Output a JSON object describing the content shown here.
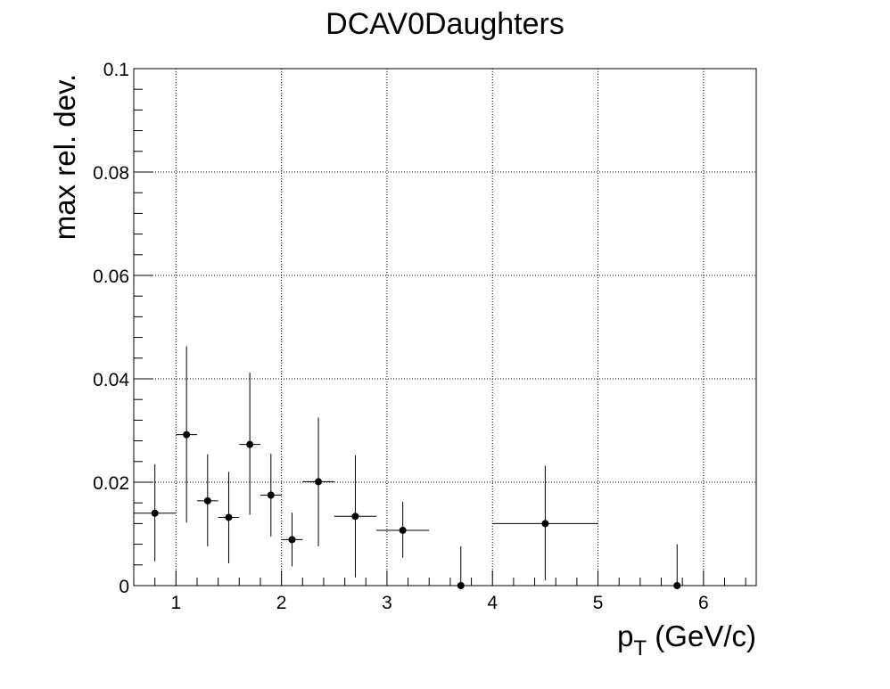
{
  "chart_data": {
    "type": "scatter",
    "title": "DCAV0Daughters",
    "xlabel_main": "p",
    "xlabel_sub": "T",
    "xlabel_unit": " (GeV/c)",
    "ylabel": "max rel. dev.",
    "xlim": [
      0.6,
      6.5
    ],
    "ylim": [
      0,
      0.1
    ],
    "x_ticks": [
      1,
      2,
      3,
      4,
      5,
      6
    ],
    "x_tick_labels": [
      "1",
      "2",
      "3",
      "4",
      "5",
      "6"
    ],
    "y_ticks": [
      0,
      0.02,
      0.04,
      0.06,
      0.08,
      0.1
    ],
    "y_tick_labels": [
      "0",
      "0.02",
      "0.04",
      "0.06",
      "0.08",
      "0.1"
    ],
    "grid": true,
    "points": [
      {
        "x": 0.8,
        "xlo": 0.6,
        "xhi": 1.0,
        "y": 0.014,
        "ylo": 0.0047,
        "yhi": 0.0235
      },
      {
        "x": 1.1,
        "xlo": 1.0,
        "xhi": 1.2,
        "y": 0.0292,
        "ylo": 0.0122,
        "yhi": 0.0463
      },
      {
        "x": 1.3,
        "xlo": 1.2,
        "xhi": 1.4,
        "y": 0.0164,
        "ylo": 0.0076,
        "yhi": 0.0254
      },
      {
        "x": 1.5,
        "xlo": 1.4,
        "xhi": 1.6,
        "y": 0.0132,
        "ylo": 0.0043,
        "yhi": 0.022
      },
      {
        "x": 1.7,
        "xlo": 1.6,
        "xhi": 1.8,
        "y": 0.0273,
        "ylo": 0.0137,
        "yhi": 0.0412
      },
      {
        "x": 1.9,
        "xlo": 1.8,
        "xhi": 2.0,
        "y": 0.0175,
        "ylo": 0.0095,
        "yhi": 0.0255
      },
      {
        "x": 2.1,
        "xlo": 2.0,
        "xhi": 2.2,
        "y": 0.0089,
        "ylo": 0.0037,
        "yhi": 0.0141
      },
      {
        "x": 2.35,
        "xlo": 2.2,
        "xhi": 2.5,
        "y": 0.0201,
        "ylo": 0.0076,
        "yhi": 0.0325
      },
      {
        "x": 2.7,
        "xlo": 2.5,
        "xhi": 2.9,
        "y": 0.0134,
        "ylo": 0.0016,
        "yhi": 0.0252
      },
      {
        "x": 3.15,
        "xlo": 2.9,
        "xhi": 3.4,
        "y": 0.0107,
        "ylo": 0.0054,
        "yhi": 0.0162
      },
      {
        "x": 3.7,
        "xlo": 3.4,
        "xhi": 4.0,
        "y": 0.0,
        "ylo": 0.0,
        "yhi": 0.0076
      },
      {
        "x": 4.5,
        "xlo": 4.0,
        "xhi": 5.0,
        "y": 0.012,
        "ylo": 0.001,
        "yhi": 0.0232
      },
      {
        "x": 5.75,
        "xlo": 5.0,
        "xhi": 6.5,
        "y": 0.0,
        "ylo": 0.0,
        "yhi": 0.008
      }
    ]
  }
}
